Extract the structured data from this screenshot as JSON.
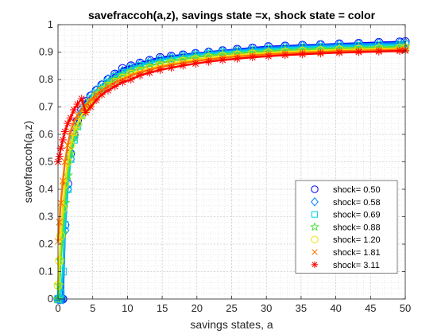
{
  "chart_data": {
    "type": "line",
    "title": "savefraccoh(a,z), savings state =x, shock state = color",
    "xlabel": "savings states, a",
    "ylabel": "savefraccoh(a,z)",
    "xlim": [
      0,
      50
    ],
    "ylim": [
      0,
      1
    ],
    "xticks": [
      0,
      5,
      10,
      15,
      20,
      25,
      30,
      35,
      40,
      45,
      50
    ],
    "yticks": [
      0,
      0.1,
      0.2,
      0.3,
      0.4,
      0.5,
      0.6,
      0.7,
      0.8,
      0.9,
      1
    ],
    "grid": true,
    "minor_grid": true,
    "legend_position": "lower-right",
    "x": [
      0.0,
      0.2,
      0.4,
      0.7,
      1.0,
      1.4,
      1.8,
      2.3,
      2.8,
      3.4,
      4.0,
      4.7,
      5.5,
      6.3,
      7.2,
      8.2,
      9.3,
      10.5,
      11.8,
      13.2,
      14.7,
      16.3,
      18.0,
      19.8,
      21.7,
      23.7,
      25.8,
      28.0,
      30.3,
      32.7,
      35.2,
      37.8,
      40.5,
      43.3,
      46.2,
      49.2,
      50.0
    ],
    "series": [
      {
        "name": "shock=  0.50",
        "marker": "circle",
        "color": "#0000ff",
        "values": [
          0.0,
          0.0,
          0.0,
          0.0,
          0.27,
          0.42,
          0.53,
          0.6,
          0.65,
          0.69,
          0.72,
          0.74,
          0.76,
          0.78,
          0.8,
          0.82,
          0.84,
          0.85,
          0.86,
          0.87,
          0.88,
          0.885,
          0.89,
          0.895,
          0.9,
          0.905,
          0.91,
          0.915,
          0.92,
          0.922,
          0.925,
          0.927,
          0.93,
          0.932,
          0.935,
          0.937,
          0.938
        ]
      },
      {
        "name": "shock=  0.58",
        "marker": "diamond",
        "color": "#0080ff",
        "values": [
          0.0,
          0.0,
          0.0,
          0.0,
          0.25,
          0.4,
          0.51,
          0.59,
          0.64,
          0.68,
          0.71,
          0.74,
          0.76,
          0.78,
          0.8,
          0.815,
          0.83,
          0.845,
          0.855,
          0.865,
          0.875,
          0.88,
          0.887,
          0.893,
          0.898,
          0.903,
          0.907,
          0.912,
          0.916,
          0.919,
          0.922,
          0.925,
          0.927,
          0.929,
          0.931,
          0.933,
          0.933
        ]
      },
      {
        "name": "shock=  0.69",
        "marker": "square",
        "color": "#00d0e0",
        "values": [
          0.0,
          0.0,
          0.02,
          0.1,
          0.27,
          0.4,
          0.51,
          0.58,
          0.63,
          0.67,
          0.7,
          0.73,
          0.75,
          0.77,
          0.79,
          0.81,
          0.825,
          0.84,
          0.85,
          0.86,
          0.87,
          0.877,
          0.883,
          0.889,
          0.894,
          0.899,
          0.903,
          0.907,
          0.911,
          0.914,
          0.917,
          0.919,
          0.921,
          0.923,
          0.925,
          0.927,
          0.928
        ]
      },
      {
        "name": "shock=  0.88",
        "marker": "star",
        "color": "#50e040",
        "values": [
          0.0,
          0.05,
          0.14,
          0.24,
          0.35,
          0.45,
          0.53,
          0.59,
          0.63,
          0.67,
          0.7,
          0.72,
          0.745,
          0.765,
          0.785,
          0.8,
          0.815,
          0.83,
          0.84,
          0.85,
          0.86,
          0.868,
          0.875,
          0.881,
          0.887,
          0.892,
          0.896,
          0.9,
          0.904,
          0.907,
          0.91,
          0.912,
          0.914,
          0.916,
          0.918,
          0.92,
          0.921
        ]
      },
      {
        "name": "shock=  1.20",
        "marker": "circle",
        "color": "#f0e000",
        "values": [
          0.05,
          0.14,
          0.23,
          0.33,
          0.42,
          0.5,
          0.56,
          0.61,
          0.64,
          0.67,
          0.69,
          0.715,
          0.74,
          0.76,
          0.775,
          0.79,
          0.805,
          0.82,
          0.83,
          0.84,
          0.85,
          0.858,
          0.866,
          0.873,
          0.879,
          0.884,
          0.889,
          0.893,
          0.897,
          0.9,
          0.903,
          0.905,
          0.908,
          0.91,
          0.912,
          0.913,
          0.914
        ]
      },
      {
        "name": "shock=  1.81",
        "marker": "x",
        "color": "#ff7000",
        "values": [
          0.21,
          0.28,
          0.35,
          0.43,
          0.5,
          0.56,
          0.61,
          0.645,
          0.67,
          0.69,
          0.705,
          0.725,
          0.745,
          0.76,
          0.775,
          0.79,
          0.8,
          0.815,
          0.825,
          0.835,
          0.845,
          0.853,
          0.86,
          0.867,
          0.873,
          0.879,
          0.884,
          0.888,
          0.892,
          0.895,
          0.898,
          0.9,
          0.903,
          0.905,
          0.907,
          0.909,
          0.91
        ]
      },
      {
        "name": "shock=  3.11",
        "marker": "asterisk",
        "color": "#ff0000",
        "values": [
          0.5,
          0.52,
          0.55,
          0.58,
          0.61,
          0.64,
          0.66,
          0.69,
          0.71,
          0.73,
          0.68,
          0.7,
          0.725,
          0.745,
          0.76,
          0.775,
          0.79,
          0.8,
          0.815,
          0.825,
          0.835,
          0.843,
          0.851,
          0.858,
          0.865,
          0.871,
          0.876,
          0.881,
          0.885,
          0.889,
          0.892,
          0.895,
          0.898,
          0.9,
          0.902,
          0.904,
          0.905
        ]
      }
    ]
  }
}
